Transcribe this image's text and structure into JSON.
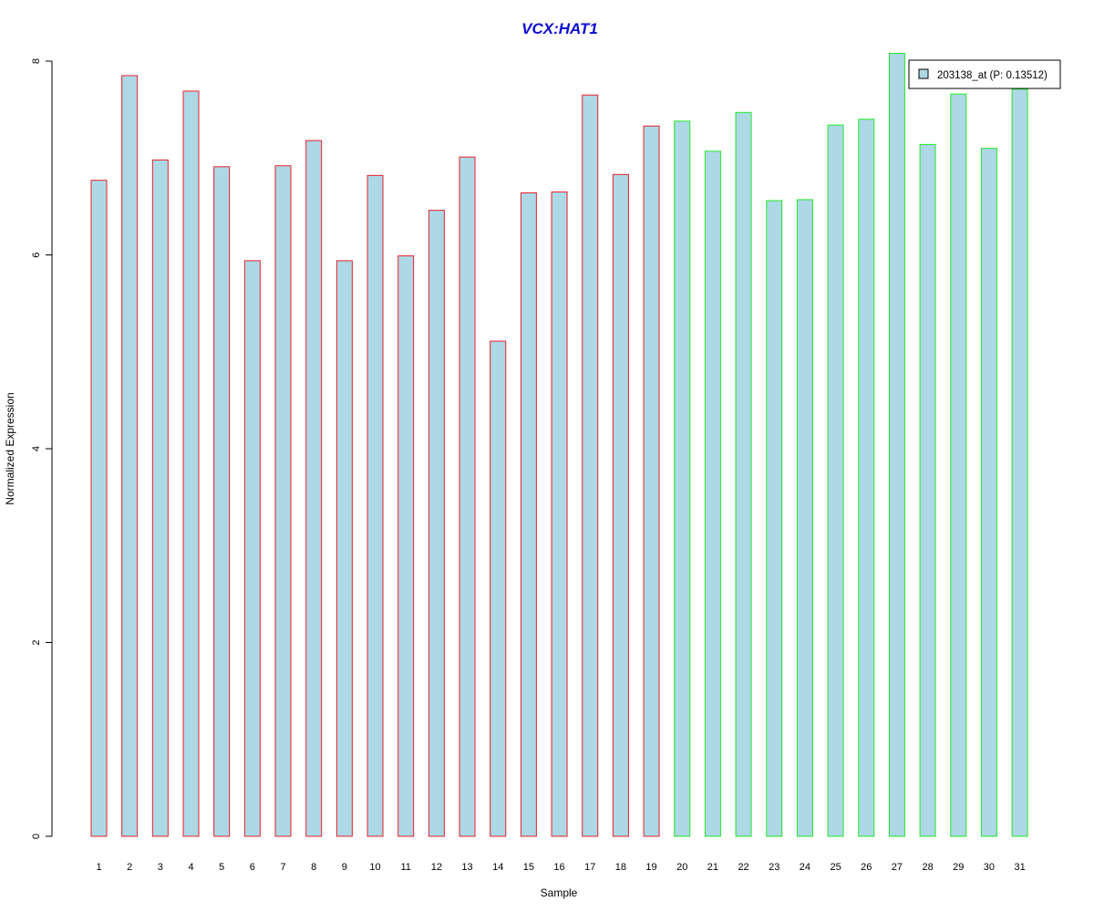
{
  "chart_data": {
    "type": "bar",
    "title": "VCX:HAT1",
    "xlabel": "Sample",
    "ylabel": "Normalized Expression",
    "ylim": [
      0,
      8
    ],
    "yticks": [
      "0",
      "2",
      "4",
      "6",
      "8"
    ],
    "categories": [
      "1",
      "2",
      "3",
      "4",
      "5",
      "6",
      "7",
      "8",
      "9",
      "10",
      "11",
      "12",
      "13",
      "14",
      "15",
      "16",
      "17",
      "18",
      "19",
      "20",
      "21",
      "22",
      "23",
      "24",
      "25",
      "26",
      "27",
      "28",
      "29",
      "30",
      "31"
    ],
    "series": [
      {
        "name": "203138_at (P: 0.13512)",
        "values": [
          6.77,
          7.85,
          6.98,
          7.69,
          6.91,
          5.94,
          6.92,
          7.18,
          5.94,
          6.82,
          5.99,
          6.46,
          7.01,
          5.11,
          6.64,
          6.65,
          7.65,
          6.83,
          7.33,
          7.38,
          7.07,
          7.47,
          6.56,
          6.57,
          7.34,
          7.4,
          8.08,
          7.14,
          7.66,
          7.1,
          7.71
        ]
      }
    ],
    "groups": [
      {
        "from": 1,
        "to": 19,
        "border_color": "#e8202a"
      },
      {
        "from": 20,
        "to": 31,
        "border_color": "#22e82a"
      }
    ],
    "bar_fill": "#add8e6",
    "title_color": "#0b0bd4",
    "legend": {
      "label": "203138_at (P: 0.13512)",
      "position": "top-right",
      "swatch_color": "#add8e6"
    },
    "grid": false
  }
}
